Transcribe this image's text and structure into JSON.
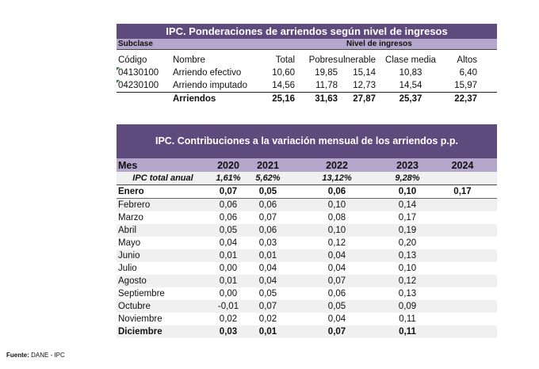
{
  "table1": {
    "title": "IPC. Ponderaciones de arriendos según nivel de ingresos",
    "subclase": "Subclase",
    "nivel": "Nivel de ingresos",
    "headers": [
      "Código",
      "Nombre",
      "Total",
      "Pobres",
      "ulnerable",
      "Clase media",
      "Altos"
    ],
    "rows": [
      [
        "04130100",
        "Arriendo efectivo",
        "10,60",
        "19,85",
        "15,14",
        "10,83",
        "6,40"
      ],
      [
        "04230100",
        "Arriendo imputado",
        "14,56",
        "11,78",
        "12,73",
        "14,54",
        "15,97"
      ]
    ],
    "total": [
      "",
      "Arriendos",
      "25,16",
      "31,63",
      "27,87",
      "25,37",
      "22,37"
    ]
  },
  "table2": {
    "title": "IPC. Contribuciones a la variación mensual de los arriendos p.p.",
    "headers": [
      "Mes",
      "2020",
      "2021",
      "2022",
      "2023",
      "2024"
    ],
    "ipc": [
      "IPC total anual",
      "1,61%",
      "5,62%",
      "13,12%",
      "9,28%",
      ""
    ],
    "rows": [
      [
        "Enero",
        "0,07",
        "0,05",
        "0,06",
        "0,10",
        "0,17"
      ],
      [
        "Febrero",
        "0,06",
        "0,06",
        "0,10",
        "0,14",
        ""
      ],
      [
        "Marzo",
        "0,06",
        "0,07",
        "0,08",
        "0,17",
        ""
      ],
      [
        "Abril",
        "0,05",
        "0,06",
        "0,10",
        "0,19",
        ""
      ],
      [
        "Mayo",
        "0,04",
        "0,03",
        "0,12",
        "0,20",
        ""
      ],
      [
        "Junio",
        "0,01",
        "0,01",
        "0,04",
        "0,13",
        ""
      ],
      [
        "Julio",
        "0,00",
        "0,04",
        "0,04",
        "0,10",
        ""
      ],
      [
        "Agosto",
        "0,01",
        "0,04",
        "0,07",
        "0,12",
        ""
      ],
      [
        "Septiembre",
        "0,00",
        "0,05",
        "0,06",
        "0,13",
        ""
      ],
      [
        "Octubre",
        "-0,01",
        "0,07",
        "0,05",
        "0,09",
        ""
      ],
      [
        "Noviembre",
        "0,02",
        "0,02",
        "0,04",
        "0,11",
        ""
      ],
      [
        "Diciembre",
        "0,03",
        "0,01",
        "0,07",
        "0,11",
        ""
      ]
    ]
  },
  "footer": {
    "label": "Fuente:",
    "text": " DANE - IPC"
  },
  "colors": {
    "header": "#5f4a7d",
    "subheader": "#b5a6cc",
    "stripe": "#f0f0f0"
  }
}
